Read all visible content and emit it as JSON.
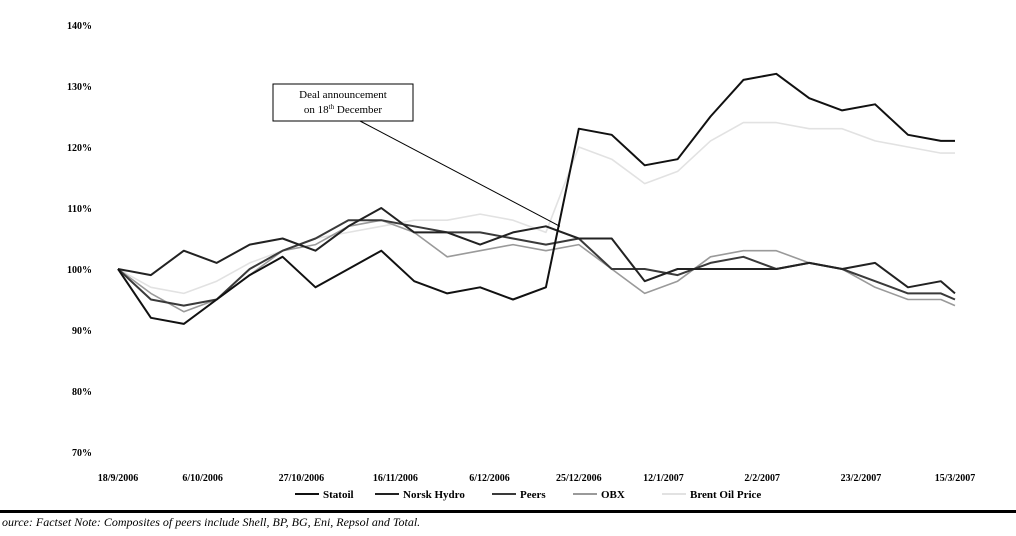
{
  "chart_data": {
    "type": "line",
    "title": "",
    "xlabel": "",
    "ylabel": "",
    "ylim": [
      70,
      140
    ],
    "y_ticks": [
      {
        "value": 140,
        "label": "140%"
      },
      {
        "value": 130,
        "label": "130%"
      },
      {
        "value": 120,
        "label": "120%"
      },
      {
        "value": 110,
        "label": "110%"
      },
      {
        "value": 100,
        "label": "100%"
      },
      {
        "value": 90,
        "label": "90%"
      },
      {
        "value": 80,
        "label": "80%"
      },
      {
        "value": 70,
        "label": "70%"
      }
    ],
    "x_ticks": [
      "18/9/2006",
      "6/10/2006",
      "27/10/2006",
      "16/11/2006",
      "6/12/2006",
      "25/12/2006",
      "12/1/2007",
      "2/2/2007",
      "23/2/2007",
      "15/3/2007"
    ],
    "x_range": [
      "18/9/2006",
      "15/3/2007"
    ],
    "grid": false,
    "legend_position": "bottom",
    "x": [
      "18/9/2006",
      "25/9/2006",
      "2/10/2006",
      "9/10/2006",
      "16/10/2006",
      "23/10/2006",
      "30/10/2006",
      "6/11/2006",
      "13/11/2006",
      "20/11/2006",
      "27/11/2006",
      "4/12/2006",
      "11/12/2006",
      "18/12/2006",
      "25/12/2006",
      "1/1/2007",
      "8/1/2007",
      "15/1/2007",
      "22/1/2007",
      "29/1/2007",
      "5/2/2007",
      "12/2/2007",
      "19/2/2007",
      "26/2/2007",
      "5/3/2007",
      "12/3/2007",
      "15/3/2007"
    ],
    "series": [
      {
        "name": "Statoil",
        "color": "#111111",
        "values": [
          100,
          92,
          91,
          95,
          99,
          102,
          97,
          100,
          103,
          98,
          96,
          97,
          95,
          97,
          123,
          122,
          117,
          118,
          125,
          131,
          132,
          128,
          126,
          127,
          122,
          121,
          121
        ]
      },
      {
        "name": "Norsk Hydro",
        "color": "#222222",
        "values": [
          100,
          99,
          103,
          101,
          104,
          105,
          103,
          107,
          110,
          106,
          106,
          104,
          106,
          107,
          105,
          105,
          98,
          100,
          100,
          100,
          100,
          101,
          100,
          101,
          97,
          98,
          96
        ]
      },
      {
        "name": "Peers",
        "color": "#3a3a3a",
        "values": [
          100,
          95,
          94,
          95,
          100,
          103,
          105,
          108,
          108,
          107,
          106,
          106,
          105,
          104,
          105,
          100,
          100,
          99,
          101,
          102,
          100,
          101,
          100,
          98,
          96,
          96,
          95
        ]
      },
      {
        "name": "OBX",
        "color": "#9a9a9a",
        "values": [
          100,
          96,
          93,
          95,
          99,
          103,
          104,
          107,
          108,
          106,
          102,
          103,
          104,
          103,
          104,
          100,
          96,
          98,
          102,
          103,
          103,
          101,
          100,
          97,
          95,
          95,
          94
        ]
      },
      {
        "name": "Brent Oil Price",
        "color": "#e2e2e2",
        "values": [
          100,
          97,
          96,
          98,
          101,
          103,
          105,
          106,
          107,
          108,
          108,
          109,
          108,
          106,
          120,
          118,
          114,
          116,
          121,
          124,
          124,
          123,
          123,
          121,
          120,
          119,
          119
        ]
      }
    ],
    "annotations": [
      {
        "text_line1": "Deal announcement",
        "text_line2": "on 18",
        "text_sup": "th",
        "text_line2_rest": " December",
        "points_to_x": "18/12/2006",
        "points_to_y": 107
      }
    ]
  },
  "source_note": "ource: Factset Note: Composites of peers include Shell, BP, BG, Eni, Repsol and Total."
}
